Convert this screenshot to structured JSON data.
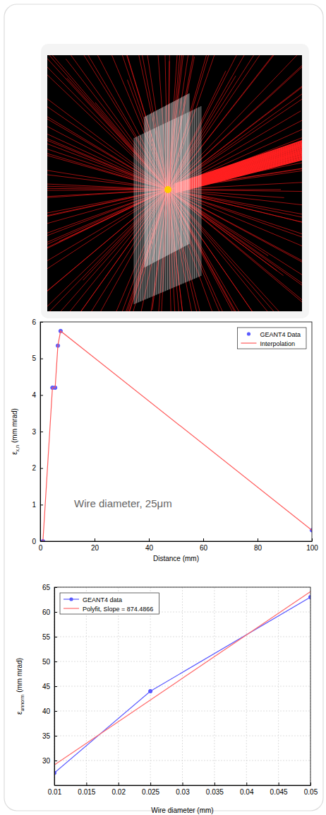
{
  "chart_data": [
    {
      "type": "line",
      "xlabel": "Distance (mm)",
      "ylabel": {
        "symbol": "ε",
        "sub": "x,n",
        "unit": "(mm mrad)"
      },
      "annotation": "Wire diameter, 25μm",
      "xlim": [
        0,
        100
      ],
      "xticks": [
        0,
        20,
        40,
        60,
        80,
        100
      ],
      "ylim": [
        0,
        6
      ],
      "yticks": [
        0,
        1,
        2,
        3,
        4,
        5,
        6
      ],
      "grid": false,
      "legend": "upper right",
      "series": [
        {
          "name": "GEANT4 Data",
          "color": "#5a5aff",
          "marker": "circle",
          "line_style": "none",
          "x": [
            1,
            4.5,
            5.5,
            6.5,
            7.5,
            100
          ],
          "values": [
            0,
            4.2,
            4.2,
            5.35,
            5.75,
            0.3
          ]
        },
        {
          "name": "Interpolation",
          "color": "#ff5a5a",
          "marker": "none",
          "line_style": "solid",
          "x": [
            1,
            4.5,
            5.5,
            6.5,
            7.5,
            100
          ],
          "values": [
            0,
            4.2,
            4.2,
            5.35,
            5.75,
            0.3
          ]
        }
      ]
    },
    {
      "type": "line",
      "xlabel": "Wire diameter (mm)",
      "ylabel": {
        "symbol": "ε",
        "sub": "unnorm",
        "unit": "(mm mrad)"
      },
      "xlim": [
        0.01,
        0.05
      ],
      "xticks": [
        0.01,
        0.015,
        0.02,
        0.025,
        0.03,
        0.035,
        0.04,
        0.045,
        0.05
      ],
      "ylim": [
        25,
        65
      ],
      "yticks": [
        30,
        35,
        40,
        45,
        50,
        55,
        60,
        65
      ],
      "grid": true,
      "legend": "upper left",
      "series": [
        {
          "name": "GEANT4 data",
          "color": "#5a5aff",
          "marker": "circle",
          "line_style": "solid",
          "x": [
            0.01,
            0.025,
            0.05
          ],
          "values": [
            27.5,
            44,
            63
          ]
        },
        {
          "name": "Polyfit, Slope = 874.4866",
          "color": "#ff6b6b",
          "marker": "none",
          "line_style": "solid",
          "x": [
            0.01,
            0.05
          ],
          "values": [
            29.1,
            64.1
          ]
        }
      ]
    }
  ]
}
